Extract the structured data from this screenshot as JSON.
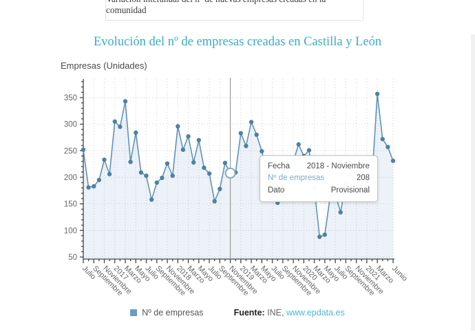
{
  "header": {
    "text": "Variación interanual del nº de nuevas empresas creadas en la comunidad"
  },
  "chart_data": {
    "type": "line",
    "title": "Evolución del nº de empresas creadas en Castilla y León",
    "ylabel": "Empresas (Unidades)",
    "ylim": [
      46,
      385
    ],
    "yticks": [
      50,
      100,
      150,
      200,
      250,
      300,
      350
    ],
    "grid": true,
    "x": [
      "2016-07",
      "2016-08",
      "2016-09",
      "2016-10",
      "2016-11",
      "2016-12",
      "2017-01",
      "2017-02",
      "2017-03",
      "2017-04",
      "2017-05",
      "2017-06",
      "2017-07",
      "2017-08",
      "2017-09",
      "2017-10",
      "2017-11",
      "2017-12",
      "2018-01",
      "2018-02",
      "2018-03",
      "2018-04",
      "2018-05",
      "2018-06",
      "2018-07",
      "2018-08",
      "2018-09",
      "2018-10",
      "2018-11",
      "2018-12",
      "2019-01",
      "2019-02",
      "2019-03",
      "2019-04",
      "2019-05",
      "2019-06",
      "2019-07",
      "2019-08",
      "2019-09",
      "2019-10",
      "2019-11",
      "2019-12",
      "2020-01",
      "2020-02",
      "2020-03",
      "2020-04",
      "2020-05",
      "2020-06",
      "2020-07",
      "2020-08",
      "2020-09",
      "2020-10",
      "2020-11",
      "2020-12",
      "2021-01",
      "2021-02",
      "2021-03",
      "2021-04",
      "2021-05",
      "2021-06"
    ],
    "series": [
      {
        "name": "Nº de empresas",
        "values": [
          252,
          181,
          183,
          195,
          233,
          206,
          305,
          295,
          343,
          229,
          284,
          209,
          203,
          158,
          190,
          199,
          226,
          203,
          296,
          252,
          277,
          228,
          270,
          218,
          207,
          155,
          178,
          227,
          208,
          209,
          283,
          259,
          304,
          280,
          249,
          210,
          186,
          152,
          165,
          215,
          230,
          262,
          240,
          251,
          180,
          88,
          92,
          163,
          169,
          134,
          190,
          205,
          210,
          185,
          175,
          200,
          357,
          272,
          257,
          231
        ]
      }
    ],
    "x_tick_indices": [
      0,
      2,
      4,
      6,
      8,
      10,
      12,
      14,
      16,
      18,
      20,
      22,
      24,
      26,
      28,
      30,
      32,
      34,
      36,
      38,
      40,
      42,
      44,
      46,
      48,
      50,
      52,
      54,
      56,
      59
    ],
    "x_tick_labels": [
      "Julio",
      "Septiembre",
      "Noviembre",
      "2017",
      "Marzo",
      "Mayo",
      "Julio",
      "Septiembre",
      "Noviembre",
      "2018",
      "Marzo",
      "Mayo",
      "Julio",
      "Septiembre",
      "Noviembre",
      "2019",
      "Marzo",
      "Mayo",
      "Julio",
      "Septiembre",
      "Noviembre",
      "2020",
      "Marzo",
      "Mayo",
      "Julio",
      "Septiembre",
      "Noviembre",
      "2021",
      "Marzo",
      "Junio"
    ],
    "selected_point": {
      "index": 28,
      "fecha": "2018 - Noviembre",
      "value": 208,
      "dato": "Provisional"
    },
    "colors": {
      "line": "#5e92b5",
      "marker": "#4d81a6",
      "area_fill": "rgba(95,148,186,0.12)",
      "grid": "#cfcfcf",
      "axis": "#444444",
      "axis_text": "#666666",
      "crosshair": "#999999",
      "selected_ring": "#86a9c3",
      "title": "#3aadc6"
    }
  },
  "tooltip": {
    "rows": [
      {
        "label": "Fecha",
        "value": "2018 - Noviembre"
      },
      {
        "label": "Nº de empresas",
        "value": "208"
      },
      {
        "label": "Dato",
        "value": "Provisional"
      }
    ]
  },
  "legend": {
    "label": "Nº de empresas",
    "swatch_color": "#6e9cbf"
  },
  "fuente": {
    "prefix": "Fuente:",
    "source": " INE, ",
    "link": "www.epdata.es"
  }
}
